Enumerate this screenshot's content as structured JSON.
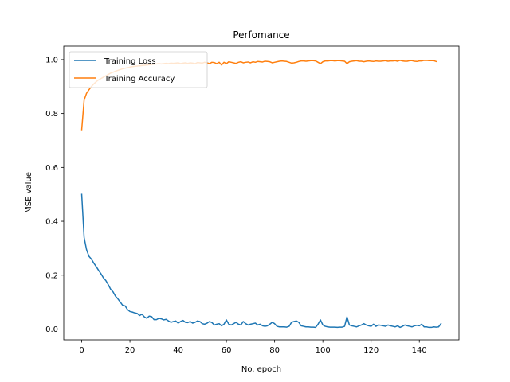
{
  "chart_data": {
    "type": "line",
    "title": "Perfomance",
    "xlabel": "No. epoch",
    "ylabel": "MSE value",
    "xlim": [
      -7.45,
      156.45
    ],
    "ylim": [
      -0.04,
      1.05
    ],
    "xticks": [
      0,
      20,
      40,
      60,
      80,
      100,
      120,
      140
    ],
    "yticks": [
      0.0,
      0.2,
      0.4,
      0.6,
      0.8,
      1.0
    ],
    "xtick_labels": [
      "0",
      "20",
      "40",
      "60",
      "80",
      "100",
      "120",
      "140"
    ],
    "ytick_labels": [
      "0.0",
      "0.2",
      "0.4",
      "0.6",
      "0.8",
      "1.0"
    ],
    "legend_position": "upper-left",
    "grid": false,
    "series": [
      {
        "name": "Training Loss",
        "color": "#1f77b4",
        "values": [
          0.5,
          0.34,
          0.295,
          0.27,
          0.26,
          0.245,
          0.232,
          0.218,
          0.205,
          0.19,
          0.18,
          0.165,
          0.148,
          0.138,
          0.122,
          0.112,
          0.1,
          0.088,
          0.086,
          0.072,
          0.065,
          0.063,
          0.06,
          0.058,
          0.05,
          0.055,
          0.045,
          0.04,
          0.048,
          0.046,
          0.035,
          0.035,
          0.04,
          0.038,
          0.034,
          0.036,
          0.03,
          0.025,
          0.028,
          0.03,
          0.022,
          0.028,
          0.032,
          0.025,
          0.024,
          0.028,
          0.022,
          0.025,
          0.03,
          0.028,
          0.02,
          0.018,
          0.022,
          0.028,
          0.024,
          0.015,
          0.018,
          0.02,
          0.012,
          0.018,
          0.034,
          0.018,
          0.015,
          0.02,
          0.025,
          0.018,
          0.015,
          0.028,
          0.02,
          0.015,
          0.018,
          0.02,
          0.022,
          0.015,
          0.018,
          0.012,
          0.01,
          0.012,
          0.018,
          0.025,
          0.02,
          0.01,
          0.008,
          0.008,
          0.008,
          0.007,
          0.01,
          0.025,
          0.028,
          0.03,
          0.025,
          0.012,
          0.01,
          0.008,
          0.008,
          0.007,
          0.007,
          0.006,
          0.018,
          0.034,
          0.015,
          0.01,
          0.008,
          0.007,
          0.007,
          0.007,
          0.006,
          0.007,
          0.007,
          0.01,
          0.045,
          0.015,
          0.012,
          0.01,
          0.008,
          0.012,
          0.015,
          0.02,
          0.015,
          0.012,
          0.01,
          0.018,
          0.01,
          0.015,
          0.014,
          0.012,
          0.01,
          0.015,
          0.012,
          0.01,
          0.008,
          0.012,
          0.006,
          0.01,
          0.015,
          0.012,
          0.01,
          0.008,
          0.012,
          0.014,
          0.012,
          0.018,
          0.008,
          0.008,
          0.006,
          0.006,
          0.008,
          0.007,
          0.008,
          0.02
        ]
      },
      {
        "name": "Training Accuracy",
        "color": "#ff7f0e",
        "values": [
          0.74,
          0.85,
          0.875,
          0.888,
          0.9,
          0.91,
          0.918,
          0.925,
          0.93,
          0.935,
          0.94,
          0.945,
          0.95,
          0.953,
          0.957,
          0.96,
          0.963,
          0.966,
          0.968,
          0.97,
          0.972,
          0.974,
          0.975,
          0.976,
          0.977,
          0.978,
          0.979,
          0.98,
          0.981,
          0.982,
          0.983,
          0.984,
          0.985,
          0.984,
          0.985,
          0.986,
          0.985,
          0.987,
          0.986,
          0.987,
          0.988,
          0.985,
          0.987,
          0.988,
          0.986,
          0.988,
          0.987,
          0.985,
          0.989,
          0.988,
          0.987,
          0.99,
          0.988,
          0.985,
          0.99,
          0.989,
          0.985,
          0.99,
          0.98,
          0.99,
          0.985,
          0.992,
          0.99,
          0.988,
          0.986,
          0.99,
          0.992,
          0.988,
          0.99,
          0.991,
          0.988,
          0.992,
          0.99,
          0.993,
          0.992,
          0.991,
          0.994,
          0.993,
          0.992,
          0.988,
          0.99,
          0.992,
          0.994,
          0.995,
          0.994,
          0.993,
          0.99,
          0.987,
          0.988,
          0.99,
          0.993,
          0.995,
          0.995,
          0.994,
          0.995,
          0.996,
          0.996,
          0.995,
          0.99,
          0.985,
          0.992,
          0.995,
          0.995,
          0.996,
          0.996,
          0.995,
          0.996,
          0.996,
          0.995,
          0.994,
          0.985,
          0.992,
          0.994,
          0.995,
          0.996,
          0.994,
          0.994,
          0.992,
          0.994,
          0.995,
          0.994,
          0.993,
          0.995,
          0.994,
          0.994,
          0.995,
          0.996,
          0.994,
          0.995,
          0.995,
          0.996,
          0.994,
          0.997,
          0.995,
          0.994,
          0.994,
          0.996,
          0.996,
          0.994,
          0.993,
          0.995,
          0.995,
          0.997,
          0.997,
          0.996,
          0.996,
          0.996,
          0.993
        ]
      }
    ]
  }
}
